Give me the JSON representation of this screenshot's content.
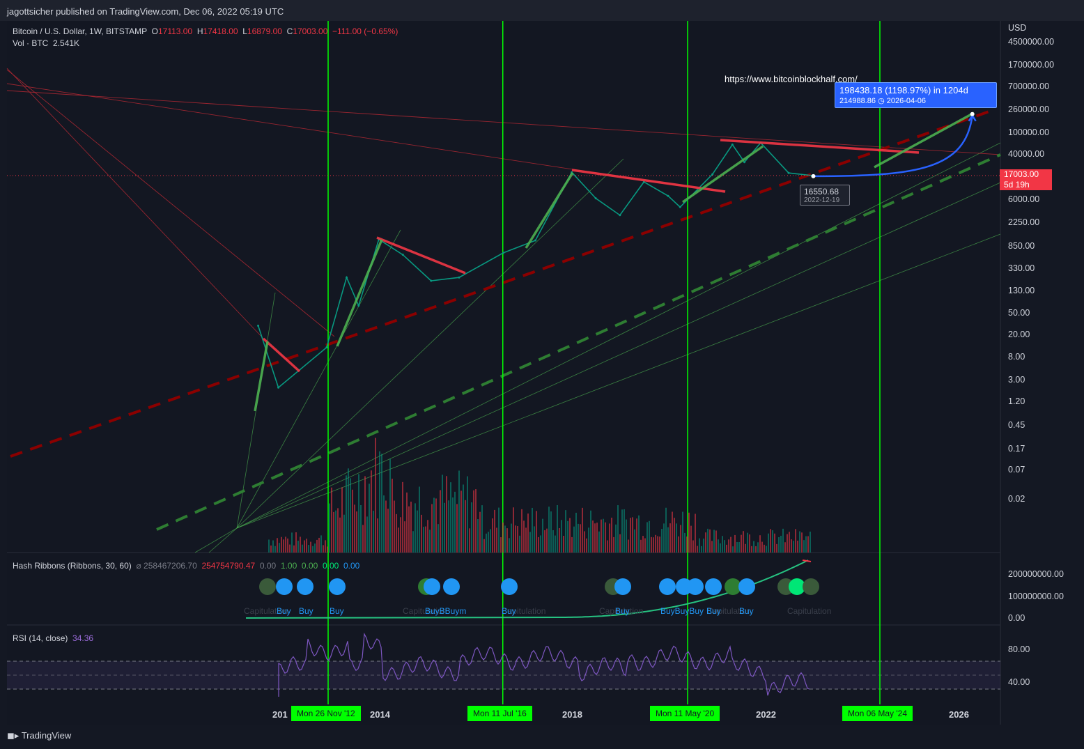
{
  "header": {
    "published": "jagottsicher published on TradingView.com, Dec 06, 2022 05:19 UTC"
  },
  "legend": {
    "symbol": "Bitcoin / U.S. Dollar, 1W, BITSTAMP",
    "o_label": "O",
    "o": "17113.00",
    "h_label": "H",
    "h": "17418.00",
    "l_label": "L",
    "l": "16879.00",
    "c_label": "C",
    "c": "17003.00",
    "change": "−111.00 (−0.65%)",
    "vol_label": "Vol · BTC",
    "vol": "2.541K"
  },
  "hash_legend": {
    "name": "Hash Ribbons (Ribbons, 30, 60)",
    "v1": "258467206.70",
    "v2": "254754790.47",
    "v3": "0.00",
    "v4": "1.00",
    "v5": "0.00",
    "v6": "0.00",
    "v7": "0.00"
  },
  "rsi_legend": {
    "name": "RSI (14, close)",
    "value": "34.36"
  },
  "axis": {
    "currency": "USD",
    "price_ticks": [
      "4500000.00",
      "1700000.00",
      "700000.00",
      "260000.00",
      "100000.00",
      "40000.00",
      "6000.00",
      "2250.00",
      "850.00",
      "330.00",
      "130.00",
      "50.00",
      "20.00",
      "8.00",
      "3.00",
      "1.20",
      "0.45",
      "0.17",
      "0.07",
      "0.02"
    ],
    "hash_ticks": [
      "200000000.00",
      "100000000.00",
      "0.00"
    ],
    "rsi_ticks": [
      "80.00",
      "40.00"
    ],
    "years": [
      "201",
      "2014",
      "2018",
      "2022",
      "2026"
    ],
    "vline_dates": [
      "Mon 26 Nov '12",
      "Mon 11 Jul '16",
      "Mon 11 May '20",
      "Mon 06 May '24"
    ]
  },
  "price_badge": {
    "price": "17003.00",
    "countdown": "5d 19h"
  },
  "projection": {
    "line1": "198438.18 (1198.97%) in 1204d",
    "line2": "214988.86",
    "date": "2026-04-06"
  },
  "low_marker": {
    "price": "16550.68",
    "date": "2022-12-19"
  },
  "url_text": "https://www.bitcoinblockhalf.com/",
  "hash_buys": [
    "Buy",
    "Buy",
    "Buy",
    "BuyBBuym",
    "Buy",
    "Buy",
    "BuyBuyBuy",
    "Buy",
    "Buy",
    "Buy"
  ],
  "hash_ghost": [
    "Capitulation",
    "Capitulation",
    "Capitulation",
    "Capitulation",
    "Capitulation",
    "Capitulation"
  ],
  "footer": "TradingView",
  "colors": {
    "bg": "#131722",
    "up": "#089981",
    "down": "#f23645",
    "halving": "#00ff00",
    "resistance": "#f23645",
    "support": "#4caf50",
    "rsi": "#7e57c2",
    "projection": "#2962ff"
  },
  "chart_data": {
    "type": "line",
    "title": "Bitcoin / U.S. Dollar, 1W, BITSTAMP",
    "y_scale": "log",
    "x": [
      "2011-06",
      "2011-11",
      "2012-11",
      "2013-04",
      "2013-07",
      "2013-12",
      "2014-06",
      "2015-01",
      "2015-08",
      "2016-07",
      "2017-03",
      "2017-12",
      "2018-06",
      "2018-12",
      "2019-06",
      "2019-12",
      "2020-03",
      "2020-11",
      "2021-04",
      "2021-07",
      "2021-11",
      "2022-06",
      "2022-12"
    ],
    "series": [
      {
        "name": "",
        "values": [
          30,
          2.2,
          12,
          230,
          70,
          1150,
          600,
          200,
          230,
          650,
          1100,
          19500,
          6500,
          3200,
          13000,
          7200,
          4500,
          18000,
          63000,
          30000,
          68000,
          19000,
          17003
        ]
      }
    ],
    "projection": {
      "from": "2022-12-19",
      "from_value": 16550.68,
      "to": "2026-04-06",
      "to_value": 214988.86,
      "change": 198438.18,
      "change_pct": 1198.97,
      "days": 1204
    },
    "halvings": [
      "2012-11-26",
      "2016-07-11",
      "2020-05-11",
      "2024-05-06"
    ]
  }
}
